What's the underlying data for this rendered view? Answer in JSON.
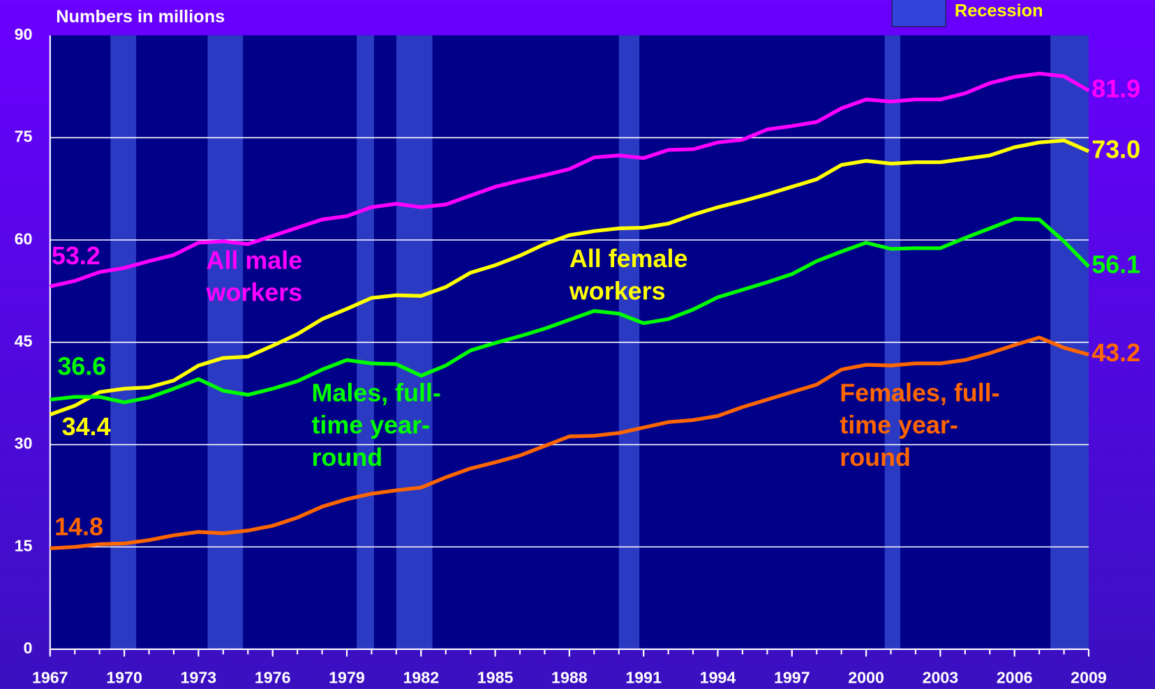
{
  "chart_data": {
    "type": "line",
    "axis_label": "Numbers in millions",
    "legend_label": "Recession",
    "x": [
      1967,
      1968,
      1969,
      1970,
      1971,
      1972,
      1973,
      1974,
      1975,
      1976,
      1977,
      1978,
      1979,
      1980,
      1981,
      1982,
      1983,
      1984,
      1985,
      1986,
      1987,
      1988,
      1989,
      1990,
      1991,
      1992,
      1993,
      1994,
      1995,
      1996,
      1997,
      1998,
      1999,
      2000,
      2001,
      2002,
      2003,
      2004,
      2005,
      2006,
      2007,
      2008,
      2009
    ],
    "xlim": [
      1967,
      2009
    ],
    "xticks": [
      1967,
      1970,
      1973,
      1976,
      1979,
      1982,
      1985,
      1988,
      1991,
      1994,
      1997,
      2000,
      2003,
      2006,
      2009
    ],
    "ylim": [
      0,
      90
    ],
    "yticks": [
      0,
      15,
      30,
      45,
      60,
      75,
      90
    ],
    "grid": true,
    "recessions": [
      [
        1969.44,
        1970.48
      ],
      [
        1973.37,
        1974.8
      ],
      [
        1979.4,
        1980.1
      ],
      [
        1981.0,
        1982.46
      ],
      [
        1990.0,
        1990.83
      ],
      [
        2000.75,
        2001.38
      ],
      [
        2007.45,
        2009
      ]
    ],
    "series": [
      {
        "name": "All male workers",
        "color": "#ff00ff",
        "values": [
          53.2,
          54.0,
          55.3,
          55.9,
          56.9,
          57.8,
          59.6,
          59.8,
          59.4,
          60.6,
          61.8,
          63.0,
          63.5,
          64.8,
          65.3,
          64.8,
          65.2,
          66.5,
          67.8,
          68.7,
          69.5,
          70.4,
          72.1,
          72.4,
          72.0,
          73.2,
          73.3,
          74.3,
          74.7,
          76.2,
          76.7,
          77.3,
          79.3,
          80.6,
          80.3,
          80.6,
          80.6,
          81.5,
          83.0,
          83.9,
          84.4,
          84.0,
          81.9
        ],
        "value_labels": [
          "53.2",
          "81.9"
        ]
      },
      {
        "name": "All female workers",
        "color": "#ffff00",
        "values": [
          34.4,
          35.7,
          37.7,
          38.2,
          38.4,
          39.4,
          41.6,
          42.7,
          42.9,
          44.5,
          46.2,
          48.4,
          49.9,
          51.5,
          51.9,
          51.8,
          53.1,
          55.2,
          56.3,
          57.7,
          59.4,
          60.7,
          61.3,
          61.7,
          61.8,
          62.4,
          63.7,
          64.8,
          65.7,
          66.7,
          67.8,
          68.9,
          71.0,
          71.6,
          71.2,
          71.4,
          71.4,
          71.9,
          72.4,
          73.6,
          74.3,
          74.6,
          73.0
        ],
        "value_labels": [
          "34.4",
          "73.0"
        ]
      },
      {
        "name": "Males, full-time year-round",
        "color": "#00ff00",
        "values": [
          36.6,
          37.0,
          37.0,
          36.2,
          36.9,
          38.2,
          39.6,
          37.9,
          37.3,
          38.2,
          39.3,
          41.0,
          42.4,
          41.9,
          41.8,
          40.1,
          41.6,
          43.8,
          44.9,
          45.9,
          47.0,
          48.3,
          49.6,
          49.2,
          47.8,
          48.4,
          49.8,
          51.6,
          52.7,
          53.8,
          55.0,
          56.9,
          58.3,
          59.6,
          58.7,
          58.8,
          58.8,
          60.3,
          61.7,
          63.1,
          63.0,
          59.8,
          56.1
        ],
        "value_labels": [
          "36.6",
          "56.1"
        ]
      },
      {
        "name": "Females, full-time year-round",
        "color": "#ff6600",
        "values": [
          14.8,
          15.0,
          15.4,
          15.5,
          16.0,
          16.7,
          17.2,
          17.0,
          17.4,
          18.1,
          19.3,
          20.9,
          22.0,
          22.8,
          23.3,
          23.7,
          25.2,
          26.5,
          27.4,
          28.4,
          29.8,
          31.2,
          31.3,
          31.7,
          32.5,
          33.3,
          33.6,
          34.2,
          35.5,
          36.6,
          37.7,
          38.8,
          41.0,
          41.7,
          41.6,
          41.9,
          41.9,
          42.4,
          43.4,
          44.6,
          45.7,
          44.2,
          43.2
        ],
        "value_labels": [
          "14.8",
          "43.2"
        ]
      }
    ]
  }
}
